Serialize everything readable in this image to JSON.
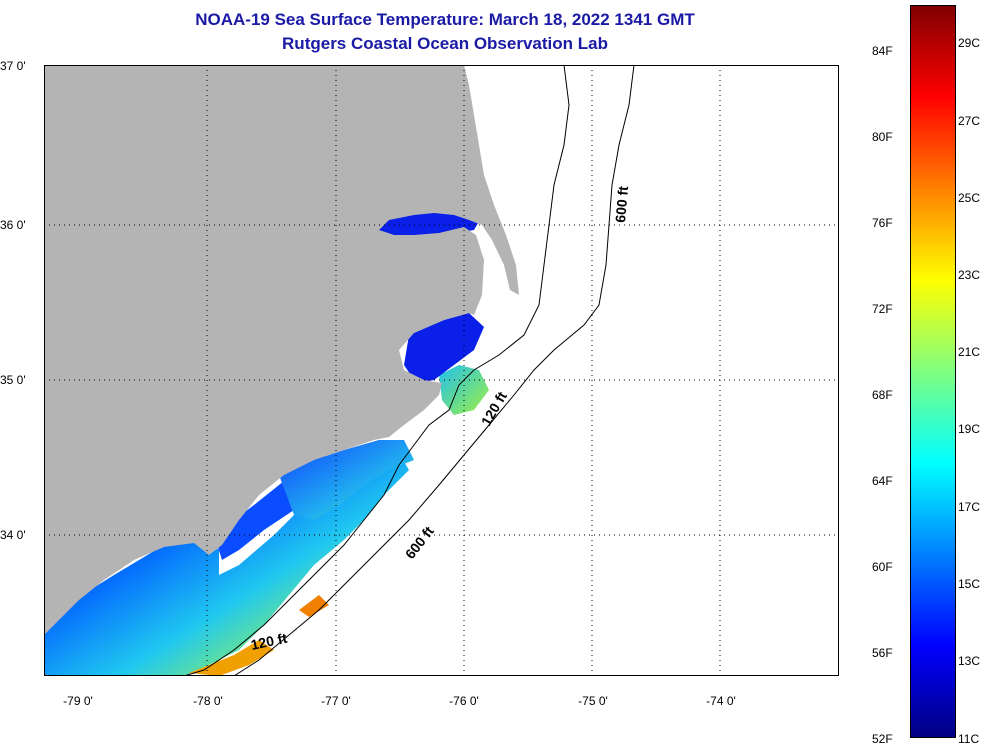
{
  "title": "NOAA-19 Sea Surface Temperature:  March 18, 2022 1341 GMT",
  "subtitle": "Rutgers Coastal Ocean Observation Lab",
  "lat_labels": [
    "37 0'",
    "36 0'",
    "35 0'",
    "34 0'"
  ],
  "lon_labels": [
    "-79 0'",
    "-78 0'",
    "-77 0'",
    "-76 0'",
    "-75 0'",
    "-74 0'"
  ],
  "contours": {
    "shelf_120": "120 ft",
    "shelf_600": "600 ft"
  },
  "colorbar": {
    "fahrenheit": [
      "84F",
      "80F",
      "76F",
      "72F",
      "68F",
      "64F",
      "60F",
      "56F",
      "52F"
    ],
    "celsius": [
      "29C",
      "27C",
      "25C",
      "23C",
      "21C",
      "19C",
      "17C",
      "15C",
      "13C",
      "11C"
    ],
    "colors": [
      "#000080",
      "#0000ff",
      "#0080ff",
      "#00ffff",
      "#80ff80",
      "#ffff00",
      "#ff8000",
      "#ff0000",
      "#800000"
    ]
  },
  "colors": {
    "land": "#b4b4b4",
    "title": "#1a1aa6"
  }
}
